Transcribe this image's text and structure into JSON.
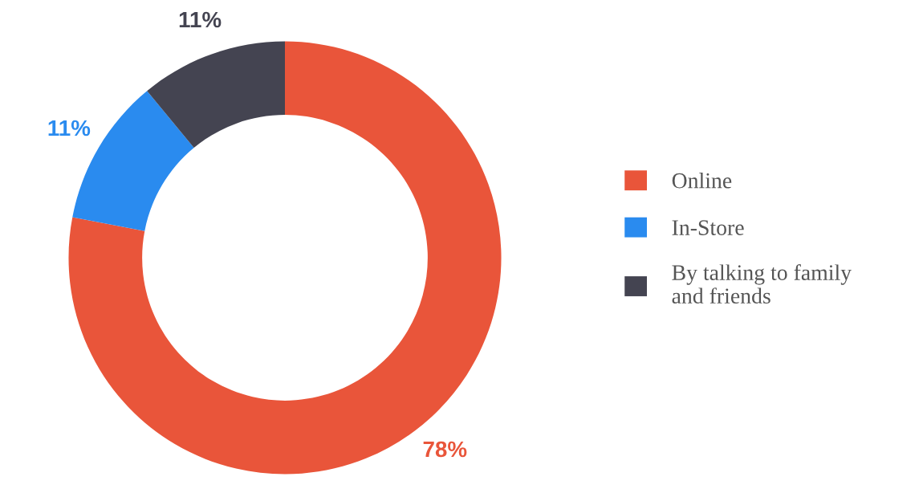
{
  "chart_data": {
    "type": "donut",
    "categories": [
      "Online",
      "In-Store",
      "By talking to family\nand friends"
    ],
    "values": [
      78,
      11,
      11
    ],
    "colors": [
      "#e9553a",
      "#2a8bef",
      "#444451"
    ],
    "value_labels": [
      "78%",
      "11%",
      "11%"
    ],
    "legend": "right"
  }
}
